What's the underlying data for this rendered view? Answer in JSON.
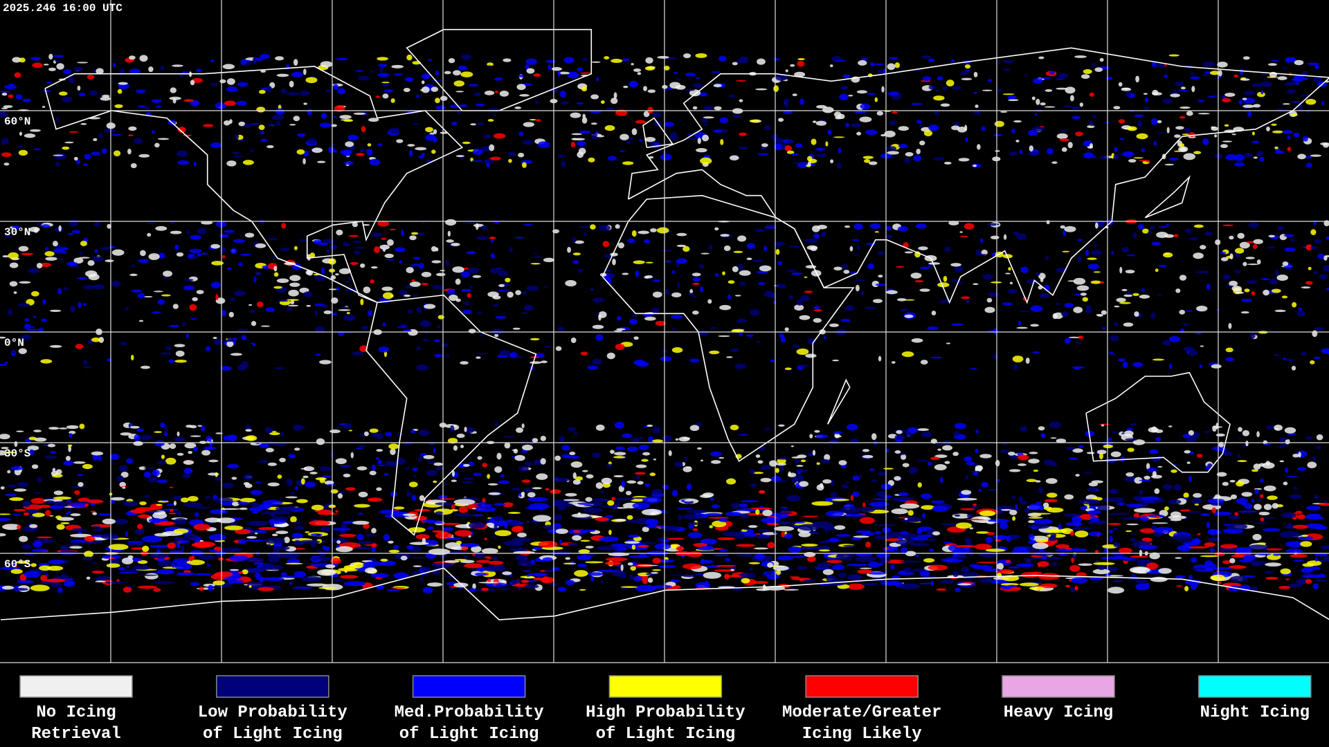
{
  "timestamp": "2025.246 16:00 UTC",
  "latitude_labels": [
    "60°N",
    "30°N",
    "0°N",
    "30°S",
    "60°S"
  ],
  "legend": [
    {
      "lines": [
        "No Icing",
        "Retrieval"
      ],
      "color": "#f0f0f0"
    },
    {
      "lines": [
        "Low Probability",
        "of Light Icing"
      ],
      "color": "#00007a"
    },
    {
      "lines": [
        "Med.Probability",
        "of Light Icing"
      ],
      "color": "#0000ff"
    },
    {
      "lines": [
        "High Probability",
        "of Light Icing"
      ],
      "color": "#ffff00"
    },
    {
      "lines": [
        "Moderate/Greater",
        "Icing Likely"
      ],
      "color": "#ff0000"
    },
    {
      "lines": [
        "Heavy Icing"
      ],
      "color": "#e8a6e4"
    },
    {
      "lines": [
        "Night Icing"
      ],
      "color": "#00ffff"
    }
  ]
}
